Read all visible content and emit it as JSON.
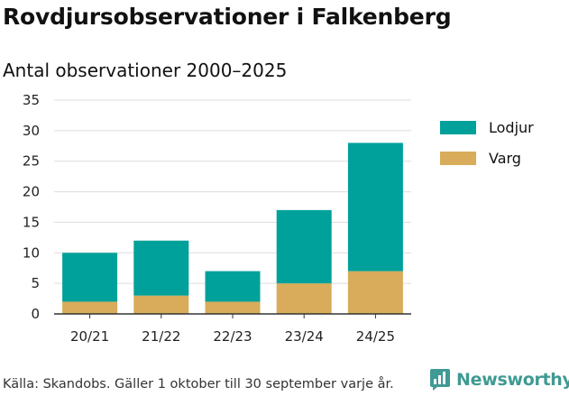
{
  "title": "Rovdjursobservationer i Falkenberg",
  "subtitle": "Antal observationer 2000–2025",
  "source": "Källa: Skandobs. Gäller 1 oktober till 30 september varje år.",
  "brand": "Newsworthy",
  "colors": {
    "lodjur": "#00a19a",
    "varg": "#d8ac5a",
    "grid": "#dddddd",
    "axis": "#333333",
    "brand": "#3f9a93"
  },
  "chart_data": {
    "type": "bar",
    "stacked": true,
    "title": "Antal observationer 2000–2025",
    "categories": [
      "20/21",
      "21/22",
      "22/23",
      "23/24",
      "24/25"
    ],
    "series": [
      {
        "name": "Varg",
        "values": [
          2,
          3,
          2,
          5,
          7
        ]
      },
      {
        "name": "Lodjur",
        "values": [
          8,
          9,
          5,
          12,
          21
        ]
      }
    ],
    "ylim": [
      0,
      35
    ],
    "yticks": [
      0,
      5,
      10,
      15,
      20,
      25,
      30,
      35
    ],
    "xlabel": "",
    "ylabel": "",
    "legend": [
      "Lodjur",
      "Varg"
    ],
    "legend_position": "top-right"
  }
}
